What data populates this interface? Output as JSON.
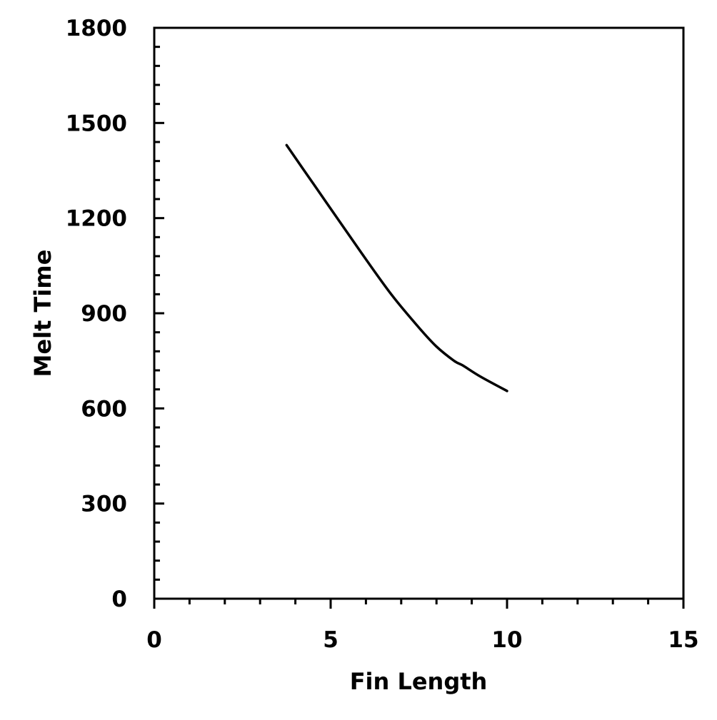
{
  "chart_data": {
    "type": "line",
    "title": "",
    "xlabel": "Fin Length",
    "ylabel": "Melt Time",
    "xlim": [
      0,
      15
    ],
    "ylim": [
      0,
      1800
    ],
    "x_ticks": [
      0,
      5,
      10,
      15
    ],
    "y_ticks": [
      0,
      300,
      600,
      900,
      1200,
      1500,
      1800
    ],
    "x_minor_step": 1,
    "y_minor_step": 60,
    "grid": false,
    "legend": "none",
    "line_color": "#000000",
    "series": [
      {
        "x": [
          3.75,
          4.5,
          5.25,
          6.0,
          6.75,
          7.5,
          8.0,
          8.5,
          8.75,
          9.25,
          10.0
        ],
        "values": [
          1430,
          1310,
          1190,
          1070,
          955,
          855,
          795,
          750,
          735,
          700,
          655
        ]
      }
    ]
  }
}
